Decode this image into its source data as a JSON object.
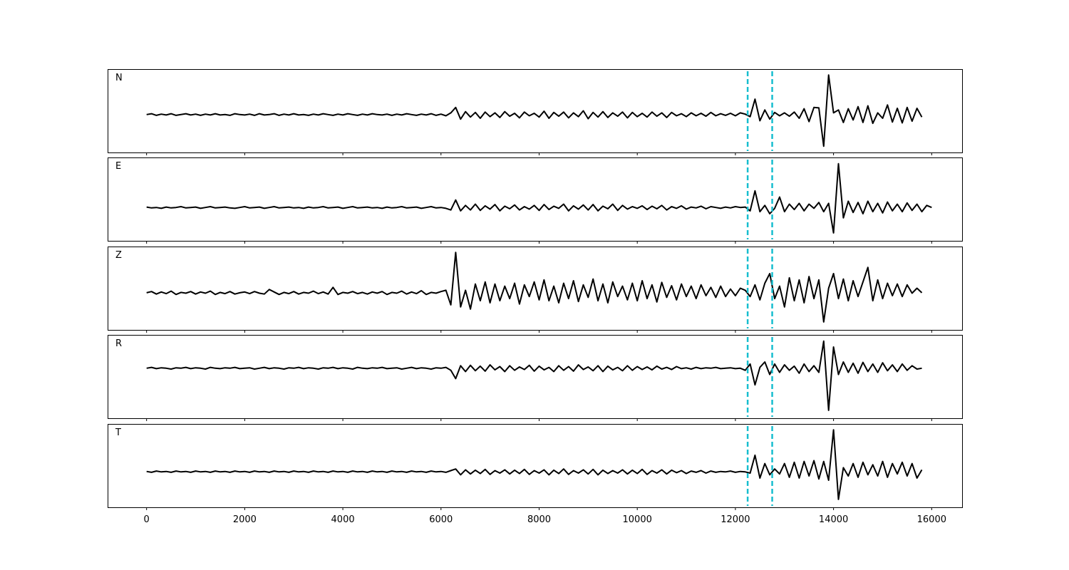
{
  "chart_data": {
    "type": "line",
    "layout": "5 stacked panels sharing x axis",
    "xlim": [
      -794,
      16620
    ],
    "xticks": [
      "0",
      "2000",
      "4000",
      "6000",
      "8000",
      "10000",
      "12000",
      "14000",
      "16000"
    ],
    "xtick_values": [
      0,
      2000,
      4000,
      6000,
      8000,
      10000,
      12000,
      14000,
      16000
    ],
    "ylim": [
      -1,
      1
    ],
    "y_ticks_shown": false,
    "grid": false,
    "line_color": "#000000",
    "marker_color": "#17becf",
    "vertical_markers": [
      12250,
      12750
    ],
    "sample_start": 0,
    "sample_step": 100,
    "panels": [
      {
        "label": "N",
        "values": [
          -0.09,
          -0.07,
          -0.11,
          -0.08,
          -0.1,
          -0.07,
          -0.11,
          -0.09,
          -0.07,
          -0.1,
          -0.08,
          -0.11,
          -0.08,
          -0.1,
          -0.07,
          -0.1,
          -0.09,
          -0.11,
          -0.07,
          -0.09,
          -0.1,
          -0.08,
          -0.11,
          -0.07,
          -0.1,
          -0.09,
          -0.07,
          -0.11,
          -0.08,
          -0.1,
          -0.07,
          -0.1,
          -0.09,
          -0.11,
          -0.08,
          -0.1,
          -0.07,
          -0.09,
          -0.11,
          -0.08,
          -0.1,
          -0.07,
          -0.09,
          -0.11,
          -0.08,
          -0.1,
          -0.07,
          -0.09,
          -0.1,
          -0.08,
          -0.11,
          -0.08,
          -0.1,
          -0.07,
          -0.09,
          -0.11,
          -0.08,
          -0.1,
          -0.07,
          -0.11,
          -0.08,
          -0.12,
          -0.05,
          0.08,
          -0.2,
          -0.02,
          -0.15,
          -0.04,
          -0.18,
          -0.03,
          -0.14,
          -0.05,
          -0.16,
          -0.02,
          -0.13,
          -0.06,
          -0.17,
          -0.03,
          -0.12,
          -0.06,
          -0.15,
          -0.01,
          -0.18,
          -0.04,
          -0.13,
          -0.03,
          -0.17,
          -0.05,
          -0.14,
          0.0,
          -0.19,
          -0.04,
          -0.15,
          -0.02,
          -0.16,
          -0.05,
          -0.13,
          -0.03,
          -0.17,
          -0.04,
          -0.14,
          -0.06,
          -0.15,
          -0.03,
          -0.13,
          -0.05,
          -0.16,
          -0.04,
          -0.12,
          -0.07,
          -0.14,
          -0.05,
          -0.12,
          -0.06,
          -0.13,
          -0.04,
          -0.12,
          -0.07,
          -0.11,
          -0.06,
          -0.12,
          -0.05,
          -0.08,
          -0.14,
          0.28,
          -0.24,
          0.02,
          -0.2,
          -0.04,
          -0.12,
          -0.05,
          -0.13,
          -0.03,
          -0.18,
          0.05,
          -0.26,
          0.08,
          0.07,
          -0.85,
          0.86,
          -0.05,
          0.02,
          -0.28,
          0.05,
          -0.22,
          0.1,
          -0.28,
          0.12,
          -0.3,
          -0.05,
          -0.18,
          0.14,
          -0.27,
          0.06,
          -0.29,
          0.08,
          -0.25,
          0.06,
          -0.15
        ]
      },
      {
        "label": "E",
        "values": [
          -0.19,
          -0.21,
          -0.2,
          -0.22,
          -0.19,
          -0.21,
          -0.2,
          -0.18,
          -0.21,
          -0.2,
          -0.19,
          -0.22,
          -0.2,
          -0.18,
          -0.21,
          -0.2,
          -0.19,
          -0.21,
          -0.22,
          -0.2,
          -0.18,
          -0.21,
          -0.2,
          -0.19,
          -0.22,
          -0.2,
          -0.18,
          -0.21,
          -0.2,
          -0.19,
          -0.21,
          -0.2,
          -0.22,
          -0.19,
          -0.21,
          -0.2,
          -0.18,
          -0.21,
          -0.2,
          -0.19,
          -0.22,
          -0.2,
          -0.18,
          -0.21,
          -0.2,
          -0.19,
          -0.21,
          -0.2,
          -0.22,
          -0.19,
          -0.21,
          -0.2,
          -0.18,
          -0.21,
          -0.2,
          -0.19,
          -0.22,
          -0.2,
          -0.18,
          -0.21,
          -0.2,
          -0.22,
          -0.26,
          -0.02,
          -0.28,
          -0.15,
          -0.26,
          -0.12,
          -0.27,
          -0.16,
          -0.24,
          -0.13,
          -0.28,
          -0.17,
          -0.23,
          -0.14,
          -0.26,
          -0.18,
          -0.24,
          -0.15,
          -0.27,
          -0.13,
          -0.25,
          -0.17,
          -0.22,
          -0.12,
          -0.28,
          -0.16,
          -0.24,
          -0.14,
          -0.26,
          -0.13,
          -0.28,
          -0.17,
          -0.23,
          -0.12,
          -0.27,
          -0.15,
          -0.24,
          -0.18,
          -0.22,
          -0.16,
          -0.25,
          -0.17,
          -0.23,
          -0.15,
          -0.26,
          -0.18,
          -0.22,
          -0.16,
          -0.24,
          -0.19,
          -0.21,
          -0.17,
          -0.23,
          -0.18,
          -0.2,
          -0.22,
          -0.19,
          -0.21,
          -0.18,
          -0.2,
          -0.19,
          -0.28,
          0.2,
          -0.3,
          -0.15,
          -0.35,
          -0.22,
          0.05,
          -0.3,
          -0.12,
          -0.25,
          -0.1,
          -0.28,
          -0.12,
          -0.22,
          -0.08,
          -0.3,
          -0.1,
          -0.81,
          0.85,
          -0.45,
          -0.05,
          -0.32,
          -0.08,
          -0.35,
          -0.05,
          -0.3,
          -0.1,
          -0.33,
          -0.07,
          -0.28,
          -0.12,
          -0.3,
          -0.09,
          -0.27,
          -0.12,
          -0.3,
          -0.15,
          -0.2
        ]
      },
      {
        "label": "Z",
        "values": [
          -0.11,
          -0.08,
          -0.14,
          -0.09,
          -0.13,
          -0.07,
          -0.15,
          -0.1,
          -0.12,
          -0.08,
          -0.14,
          -0.09,
          -0.12,
          -0.07,
          -0.15,
          -0.1,
          -0.13,
          -0.08,
          -0.14,
          -0.11,
          -0.09,
          -0.13,
          -0.08,
          -0.12,
          -0.14,
          -0.03,
          -0.09,
          -0.15,
          -0.1,
          -0.13,
          -0.08,
          -0.14,
          -0.1,
          -0.12,
          -0.07,
          -0.13,
          -0.09,
          -0.14,
          0.02,
          -0.15,
          -0.1,
          -0.12,
          -0.08,
          -0.13,
          -0.1,
          -0.14,
          -0.09,
          -0.12,
          -0.08,
          -0.15,
          -0.1,
          -0.12,
          -0.07,
          -0.14,
          -0.09,
          -0.13,
          -0.06,
          -0.15,
          -0.1,
          -0.12,
          -0.08,
          -0.05,
          -0.4,
          0.86,
          -0.45,
          -0.05,
          -0.5,
          0.1,
          -0.3,
          0.15,
          -0.35,
          0.1,
          -0.3,
          0.05,
          -0.25,
          0.12,
          -0.38,
          0.08,
          -0.2,
          0.15,
          -0.28,
          0.2,
          -0.3,
          0.05,
          -0.35,
          0.12,
          -0.25,
          0.18,
          -0.32,
          0.08,
          -0.22,
          0.22,
          -0.3,
          0.1,
          -0.35,
          0.15,
          -0.2,
          0.05,
          -0.28,
          0.12,
          -0.3,
          0.18,
          -0.25,
          0.08,
          -0.33,
          0.14,
          -0.22,
          0.06,
          -0.28,
          0.1,
          -0.2,
          0.05,
          -0.25,
          0.08,
          -0.18,
          0.02,
          -0.22,
          0.05,
          -0.2,
          -0.02,
          -0.18,
          0.0,
          -0.05,
          -0.2,
          0.08,
          -0.28,
          0.12,
          0.35,
          -0.25,
          0.05,
          -0.45,
          0.25,
          -0.3,
          0.2,
          -0.35,
          0.28,
          -0.25,
          0.2,
          -0.81,
          0.0,
          0.35,
          -0.25,
          0.22,
          -0.3,
          0.18,
          -0.2,
          0.15,
          0.5,
          -0.3,
          0.2,
          -0.25,
          0.12,
          -0.18,
          0.1,
          -0.2,
          0.08,
          -0.12,
          0.0,
          -0.11
        ]
      },
      {
        "label": "R",
        "values": [
          0.2,
          0.22,
          0.19,
          0.21,
          0.2,
          0.18,
          0.21,
          0.2,
          0.22,
          0.19,
          0.21,
          0.2,
          0.18,
          0.22,
          0.2,
          0.19,
          0.21,
          0.2,
          0.22,
          0.19,
          0.2,
          0.21,
          0.18,
          0.2,
          0.22,
          0.19,
          0.21,
          0.2,
          0.18,
          0.21,
          0.2,
          0.22,
          0.19,
          0.21,
          0.2,
          0.18,
          0.21,
          0.2,
          0.22,
          0.19,
          0.21,
          0.2,
          0.18,
          0.22,
          0.2,
          0.19,
          0.21,
          0.2,
          0.22,
          0.19,
          0.2,
          0.21,
          0.18,
          0.2,
          0.22,
          0.19,
          0.21,
          0.2,
          0.18,
          0.21,
          0.2,
          0.22,
          0.15,
          -0.05,
          0.26,
          0.12,
          0.27,
          0.14,
          0.25,
          0.13,
          0.28,
          0.16,
          0.24,
          0.12,
          0.26,
          0.15,
          0.23,
          0.17,
          0.27,
          0.13,
          0.25,
          0.16,
          0.22,
          0.12,
          0.26,
          0.15,
          0.24,
          0.13,
          0.28,
          0.17,
          0.23,
          0.14,
          0.26,
          0.12,
          0.25,
          0.16,
          0.22,
          0.14,
          0.26,
          0.15,
          0.24,
          0.17,
          0.23,
          0.16,
          0.25,
          0.18,
          0.22,
          0.17,
          0.24,
          0.19,
          0.21,
          0.18,
          0.22,
          0.19,
          0.21,
          0.2,
          0.22,
          0.19,
          0.2,
          0.21,
          0.19,
          0.2,
          0.15,
          0.3,
          -0.2,
          0.22,
          0.35,
          0.05,
          0.3,
          0.1,
          0.28,
          0.15,
          0.25,
          0.08,
          0.3,
          0.12,
          0.26,
          0.1,
          0.85,
          -0.81,
          0.71,
          0.05,
          0.35,
          0.1,
          0.32,
          0.08,
          0.34,
          0.12,
          0.3,
          0.1,
          0.33,
          0.14,
          0.28,
          0.12,
          0.3,
          0.15,
          0.26,
          0.18,
          0.2
        ]
      },
      {
        "label": "T",
        "values": [
          -0.14,
          -0.16,
          -0.13,
          -0.15,
          -0.14,
          -0.16,
          -0.13,
          -0.15,
          -0.14,
          -0.16,
          -0.13,
          -0.15,
          -0.14,
          -0.16,
          -0.13,
          -0.15,
          -0.14,
          -0.16,
          -0.13,
          -0.15,
          -0.14,
          -0.16,
          -0.13,
          -0.15,
          -0.14,
          -0.16,
          -0.13,
          -0.15,
          -0.14,
          -0.16,
          -0.13,
          -0.15,
          -0.14,
          -0.16,
          -0.13,
          -0.15,
          -0.14,
          -0.16,
          -0.13,
          -0.15,
          -0.14,
          -0.16,
          -0.13,
          -0.15,
          -0.14,
          -0.16,
          -0.13,
          -0.15,
          -0.14,
          -0.16,
          -0.13,
          -0.15,
          -0.14,
          -0.16,
          -0.13,
          -0.15,
          -0.14,
          -0.16,
          -0.13,
          -0.15,
          -0.14,
          -0.16,
          -0.12,
          -0.08,
          -0.22,
          -0.1,
          -0.2,
          -0.11,
          -0.19,
          -0.09,
          -0.21,
          -0.12,
          -0.18,
          -0.1,
          -0.2,
          -0.11,
          -0.19,
          -0.09,
          -0.21,
          -0.12,
          -0.18,
          -0.1,
          -0.22,
          -0.11,
          -0.19,
          -0.08,
          -0.21,
          -0.12,
          -0.18,
          -0.1,
          -0.2,
          -0.09,
          -0.22,
          -0.11,
          -0.19,
          -0.12,
          -0.18,
          -0.1,
          -0.2,
          -0.11,
          -0.19,
          -0.09,
          -0.21,
          -0.12,
          -0.18,
          -0.1,
          -0.2,
          -0.11,
          -0.17,
          -0.12,
          -0.19,
          -0.13,
          -0.16,
          -0.12,
          -0.18,
          -0.13,
          -0.16,
          -0.14,
          -0.15,
          -0.13,
          -0.16,
          -0.14,
          -0.15,
          -0.18,
          0.25,
          -0.3,
          0.05,
          -0.22,
          -0.08,
          -0.2,
          0.05,
          -0.28,
          0.08,
          -0.3,
          0.1,
          -0.25,
          0.12,
          -0.32,
          0.1,
          -0.35,
          0.86,
          -0.81,
          -0.05,
          -0.25,
          0.05,
          -0.28,
          0.08,
          -0.22,
          0.02,
          -0.25,
          0.1,
          -0.28,
          0.05,
          -0.2,
          0.08,
          -0.25,
          0.05,
          -0.3,
          -0.1
        ]
      }
    ]
  }
}
